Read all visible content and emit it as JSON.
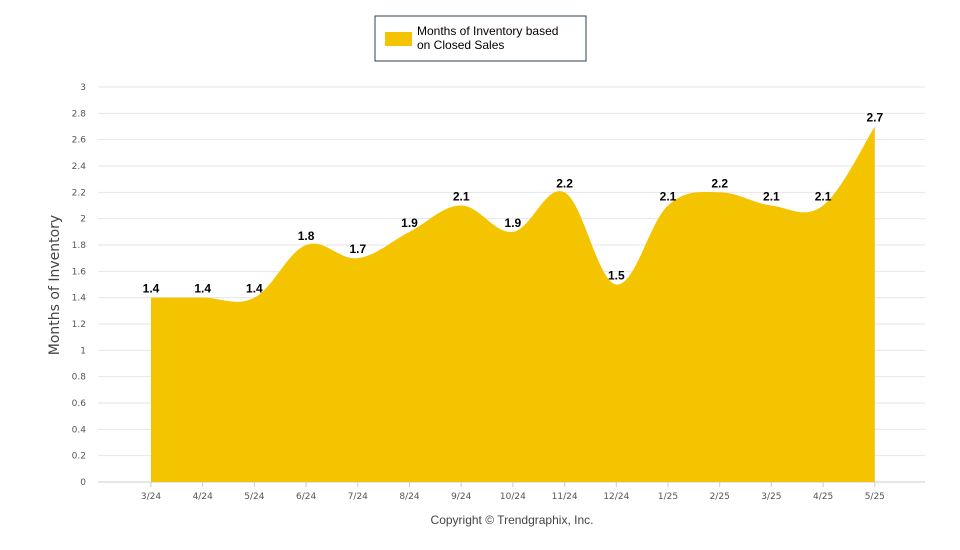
{
  "chart_data": {
    "type": "area",
    "categories": [
      "3/24",
      "4/24",
      "5/24",
      "6/24",
      "7/24",
      "8/24",
      "9/24",
      "10/24",
      "11/24",
      "12/24",
      "1/25",
      "2/25",
      "3/25",
      "4/25",
      "5/25"
    ],
    "series": [
      {
        "name": "Months of Inventory based on Closed Sales",
        "name_lines": [
          "Months of Inventory based",
          "on Closed Sales"
        ],
        "values": [
          1.4,
          1.4,
          1.4,
          1.8,
          1.7,
          1.9,
          2.1,
          1.9,
          2.2,
          1.5,
          2.1,
          2.2,
          2.1,
          2.1,
          2.7
        ],
        "color": "#F5C400"
      }
    ],
    "ylabel": "Months of Inventory",
    "ylim": [
      0,
      3
    ],
    "yticks": [
      "0",
      "0.2",
      "0.4",
      "0.6",
      "0.8",
      "1",
      "1.2",
      "1.4",
      "1.6",
      "1.8",
      "2",
      "2.2",
      "2.4",
      "2.6",
      "2.8",
      "3"
    ],
    "grid": true,
    "legend": "top-center",
    "data_labels": true
  },
  "footer": {
    "copyright": "Copyright © Trendgraphix, Inc."
  },
  "colors": {
    "area_fill": "#F5C400",
    "grid": "#E6E6E6",
    "legend_border": "#2E4057"
  }
}
